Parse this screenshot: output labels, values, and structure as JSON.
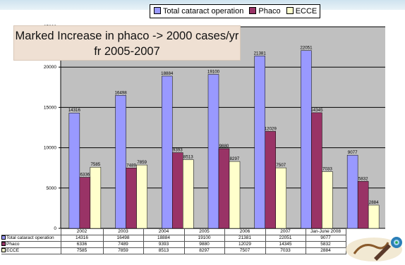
{
  "chart_data": {
    "type": "bar",
    "categories": [
      "2002",
      "2003",
      "2004",
      "2005",
      "2006",
      "2007",
      "Jan-June 2008"
    ],
    "series": [
      {
        "name": "Total cataract operation",
        "values": [
          14316,
          16498,
          18884,
          19100,
          21381,
          22051,
          9077
        ],
        "color": "#9999ff"
      },
      {
        "name": "Phaco",
        "values": [
          6336,
          7489,
          9393,
          9880,
          12029,
          14345,
          5832
        ],
        "color": "#993366"
      },
      {
        "name": "ECCE",
        "values": [
          7585,
          7859,
          8513,
          8297,
          7507,
          7033,
          2884
        ],
        "color": "#ffffcc"
      }
    ],
    "y_ticks": [
      "0",
      "5000",
      "10000",
      "15000",
      "20000",
      "25000"
    ],
    "ylim": [
      0,
      25000
    ],
    "grid": true,
    "plot_background": "#c0c0c0",
    "legend_position": "top-right",
    "annotation": "Marked Increase in phaco -> 2000 cases/yr  fr 2005-2007"
  },
  "table": {
    "rows": [
      {
        "label": "Total cataract operation",
        "values": [
          "14316",
          "16498",
          "18884",
          "19100",
          "21381",
          "22051",
          "9077"
        ]
      },
      {
        "label": "Phaco",
        "values": [
          "6336",
          "7489",
          "9393",
          "9880",
          "12029",
          "14345",
          "5832"
        ]
      },
      {
        "label": "ECCE",
        "values": [
          "7585",
          "7859",
          "8513",
          "8297",
          "7507",
          "7033",
          "2884"
        ]
      }
    ]
  },
  "logo": {
    "icon": "hospital-logo-icon"
  }
}
